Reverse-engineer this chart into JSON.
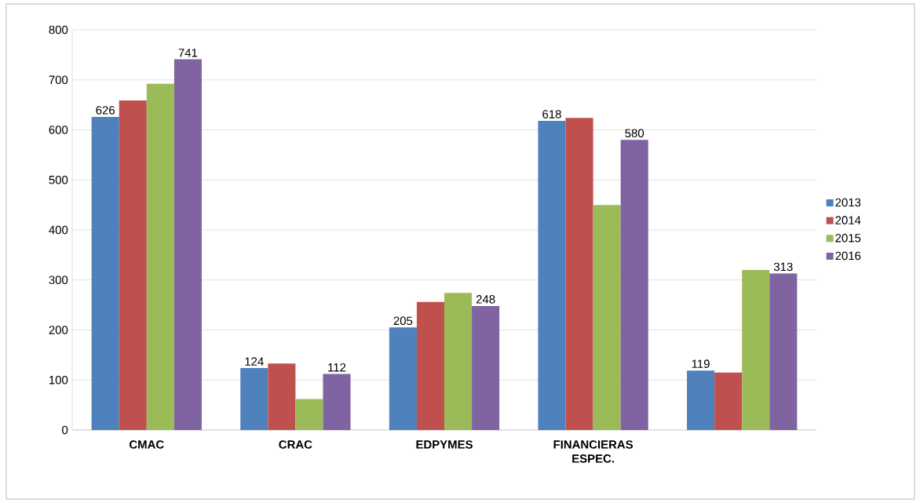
{
  "chart_data": {
    "type": "bar",
    "categories": [
      "CMAC",
      "CRAC",
      "EDPYMES",
      "FINANCIERAS ESPEC.",
      null
    ],
    "series": [
      {
        "name": "2013",
        "color": "#4f81bd",
        "values": [
          626,
          124,
          205,
          618,
          119
        ],
        "value_labels": [
          "626",
          "124",
          "205",
          "618",
          "119"
        ]
      },
      {
        "name": "2014",
        "color": "#c0504d",
        "values": [
          659,
          133,
          256,
          624,
          115
        ]
      },
      {
        "name": "2015",
        "color": "#9bbb59",
        "values": [
          692,
          62,
          274,
          450,
          320
        ]
      },
      {
        "name": "2016",
        "color": "#8064a2",
        "values": [
          741,
          112,
          248,
          580,
          313
        ],
        "value_labels": [
          "741",
          "112",
          "248",
          "580",
          "313"
        ]
      }
    ],
    "ylim": [
      0,
      800
    ],
    "yticks": [
      0,
      100,
      200,
      300,
      400,
      500,
      600,
      700,
      800
    ],
    "grid": "y",
    "legend": "right"
  }
}
